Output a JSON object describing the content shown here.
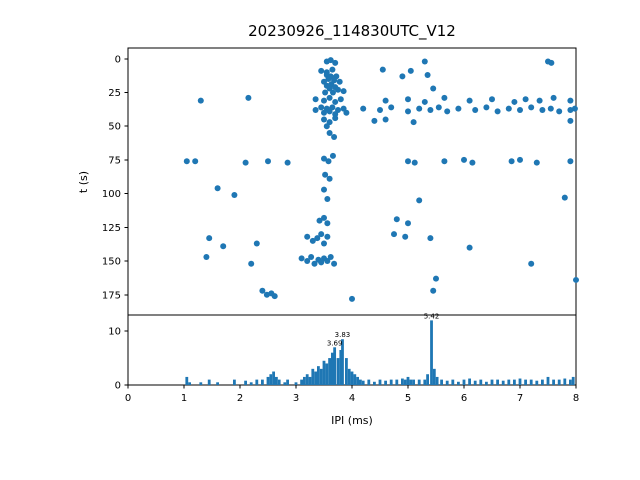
{
  "figure": {
    "title": "20230926_114830UTC_V12"
  },
  "chart_data": [
    {
      "type": "scatter",
      "title": "20230926_114830UTC_V12",
      "xlabel": "IPI (ms)",
      "ylabel": "t (s)",
      "xlim": [
        0,
        8
      ],
      "ylim": [
        190,
        -8
      ],
      "y_inverted": true,
      "xticks": [
        0,
        1,
        2,
        3,
        4,
        5,
        6,
        7,
        8
      ],
      "yticks": [
        0,
        25,
        50,
        75,
        100,
        125,
        150,
        175
      ],
      "marker_color": "#1f77b4",
      "points": [
        [
          3.55,
          2
        ],
        [
          3.62,
          1
        ],
        [
          3.7,
          3
        ],
        [
          5.3,
          2
        ],
        [
          7.5,
          2
        ],
        [
          7.56,
          3
        ],
        [
          3.45,
          9
        ],
        [
          3.55,
          10
        ],
        [
          3.65,
          8
        ],
        [
          4.55,
          8
        ],
        [
          5.05,
          9
        ],
        [
          3.55,
          12
        ],
        [
          3.62,
          13
        ],
        [
          3.72,
          13
        ],
        [
          3.58,
          15
        ],
        [
          3.68,
          16
        ],
        [
          3.5,
          17
        ],
        [
          3.78,
          17
        ],
        [
          3.63,
          19
        ],
        [
          3.55,
          20
        ],
        [
          3.7,
          21
        ],
        [
          3.6,
          22
        ],
        [
          3.75,
          23
        ],
        [
          3.85,
          24
        ],
        [
          3.52,
          25
        ],
        [
          3.66,
          25
        ],
        [
          4.9,
          13
        ],
        [
          5.35,
          12
        ],
        [
          5.45,
          22
        ],
        [
          1.3,
          31
        ],
        [
          2.15,
          29
        ],
        [
          3.35,
          30
        ],
        [
          3.5,
          31
        ],
        [
          3.6,
          29
        ],
        [
          3.7,
          32
        ],
        [
          3.8,
          30
        ],
        [
          4.6,
          31
        ],
        [
          5.0,
          30
        ],
        [
          5.3,
          32
        ],
        [
          5.65,
          29
        ],
        [
          6.1,
          31
        ],
        [
          6.5,
          30
        ],
        [
          6.9,
          32
        ],
        [
          7.1,
          30
        ],
        [
          7.35,
          31
        ],
        [
          7.6,
          29
        ],
        [
          7.9,
          31
        ],
        [
          3.35,
          38
        ],
        [
          3.45,
          36
        ],
        [
          3.5,
          40
        ],
        [
          3.55,
          37
        ],
        [
          3.6,
          39
        ],
        [
          3.65,
          36
        ],
        [
          3.7,
          41
        ],
        [
          3.75,
          38
        ],
        [
          3.85,
          37
        ],
        [
          3.9,
          40
        ],
        [
          4.2,
          37
        ],
        [
          4.5,
          38
        ],
        [
          4.7,
          36
        ],
        [
          5.0,
          39
        ],
        [
          5.2,
          37
        ],
        [
          5.4,
          38
        ],
        [
          5.55,
          36
        ],
        [
          5.7,
          39
        ],
        [
          5.9,
          37
        ],
        [
          6.2,
          38
        ],
        [
          6.4,
          36
        ],
        [
          6.6,
          39
        ],
        [
          6.8,
          37
        ],
        [
          7.0,
          38
        ],
        [
          7.2,
          36
        ],
        [
          7.4,
          38
        ],
        [
          7.55,
          37
        ],
        [
          7.7,
          39
        ],
        [
          7.9,
          38
        ],
        [
          7.98,
          37
        ],
        [
          3.5,
          45
        ],
        [
          3.6,
          47
        ],
        [
          3.7,
          44
        ],
        [
          4.4,
          46
        ],
        [
          4.6,
          45
        ],
        [
          5.1,
          47
        ],
        [
          7.9,
          46
        ],
        [
          3.55,
          50
        ],
        [
          3.6,
          55
        ],
        [
          3.68,
          58
        ],
        [
          1.05,
          76
        ],
        [
          1.2,
          76
        ],
        [
          2.1,
          77
        ],
        [
          2.5,
          76
        ],
        [
          2.85,
          77
        ],
        [
          3.5,
          74
        ],
        [
          3.58,
          76
        ],
        [
          3.66,
          72
        ],
        [
          5.0,
          76
        ],
        [
          5.12,
          77
        ],
        [
          5.65,
          76
        ],
        [
          6.0,
          75
        ],
        [
          6.15,
          77
        ],
        [
          6.85,
          76
        ],
        [
          7.0,
          75
        ],
        [
          7.3,
          77
        ],
        [
          7.9,
          76
        ],
        [
          3.52,
          86
        ],
        [
          3.6,
          89
        ],
        [
          1.6,
          96
        ],
        [
          1.9,
          101
        ],
        [
          3.5,
          97
        ],
        [
          3.56,
          104
        ],
        [
          5.2,
          105
        ],
        [
          7.8,
          103
        ],
        [
          3.42,
          120
        ],
        [
          3.5,
          118
        ],
        [
          3.56,
          122
        ],
        [
          4.8,
          119
        ],
        [
          5.0,
          122
        ],
        [
          1.45,
          133
        ],
        [
          1.7,
          139
        ],
        [
          2.3,
          137
        ],
        [
          3.2,
          132
        ],
        [
          3.3,
          135
        ],
        [
          3.38,
          133
        ],
        [
          3.45,
          130
        ],
        [
          3.5,
          137
        ],
        [
          3.56,
          132
        ],
        [
          4.75,
          130
        ],
        [
          4.95,
          132
        ],
        [
          5.4,
          133
        ],
        [
          6.1,
          140
        ],
        [
          1.4,
          147
        ],
        [
          2.2,
          152
        ],
        [
          3.1,
          148
        ],
        [
          3.2,
          150
        ],
        [
          3.27,
          147
        ],
        [
          3.33,
          152
        ],
        [
          3.4,
          149
        ],
        [
          3.45,
          151
        ],
        [
          3.5,
          148
        ],
        [
          3.56,
          150
        ],
        [
          3.62,
          147
        ],
        [
          3.68,
          152
        ],
        [
          7.2,
          152
        ],
        [
          5.5,
          163
        ],
        [
          8.0,
          164
        ],
        [
          2.4,
          172
        ],
        [
          2.48,
          175
        ],
        [
          2.56,
          174
        ],
        [
          2.62,
          176
        ],
        [
          4.0,
          178
        ],
        [
          5.45,
          172
        ]
      ]
    },
    {
      "type": "bar",
      "xlabel": "IPI (ms)",
      "xlim": [
        0,
        8
      ],
      "ylim": [
        0,
        13
      ],
      "yticks": [
        0,
        10
      ],
      "bin_width": 0.05,
      "bar_color": "#1f77b4",
      "bins": [
        [
          1.05,
          1.5
        ],
        [
          1.1,
          0.5
        ],
        [
          1.3,
          0.5
        ],
        [
          1.45,
          1
        ],
        [
          1.6,
          0.5
        ],
        [
          1.9,
          1
        ],
        [
          2.1,
          0.8
        ],
        [
          2.2,
          0.5
        ],
        [
          2.3,
          1
        ],
        [
          2.4,
          1
        ],
        [
          2.5,
          1.5
        ],
        [
          2.55,
          2
        ],
        [
          2.6,
          2.5
        ],
        [
          2.65,
          1.5
        ],
        [
          2.7,
          1
        ],
        [
          2.8,
          0.5
        ],
        [
          2.85,
          1
        ],
        [
          3.0,
          0.5
        ],
        [
          3.1,
          1
        ],
        [
          3.15,
          1.5
        ],
        [
          3.2,
          2
        ],
        [
          3.25,
          1.5
        ],
        [
          3.3,
          3
        ],
        [
          3.35,
          2.5
        ],
        [
          3.4,
          3.5
        ],
        [
          3.45,
          3
        ],
        [
          3.5,
          4.5
        ],
        [
          3.55,
          4
        ],
        [
          3.6,
          5
        ],
        [
          3.65,
          6
        ],
        [
          3.69,
          7
        ],
        [
          3.75,
          5
        ],
        [
          3.8,
          6.5
        ],
        [
          3.83,
          8.5
        ],
        [
          3.9,
          5
        ],
        [
          3.95,
          3
        ],
        [
          4.0,
          2.5
        ],
        [
          4.05,
          2
        ],
        [
          4.1,
          1.5
        ],
        [
          4.15,
          1
        ],
        [
          4.2,
          0.8
        ],
        [
          4.3,
          1
        ],
        [
          4.4,
          0.6
        ],
        [
          4.5,
          1
        ],
        [
          4.6,
          0.8
        ],
        [
          4.7,
          1
        ],
        [
          4.8,
          1
        ],
        [
          4.9,
          1.2
        ],
        [
          4.95,
          1
        ],
        [
          5.0,
          1.5
        ],
        [
          5.05,
          1
        ],
        [
          5.1,
          1
        ],
        [
          5.2,
          1
        ],
        [
          5.3,
          1
        ],
        [
          5.35,
          2
        ],
        [
          5.42,
          12
        ],
        [
          5.47,
          3
        ],
        [
          5.52,
          1.5
        ],
        [
          5.6,
          1
        ],
        [
          5.7,
          0.8
        ],
        [
          5.8,
          1
        ],
        [
          5.9,
          0.6
        ],
        [
          6.0,
          1
        ],
        [
          6.1,
          1.2
        ],
        [
          6.2,
          0.8
        ],
        [
          6.3,
          1
        ],
        [
          6.4,
          0.6
        ],
        [
          6.5,
          1
        ],
        [
          6.6,
          1
        ],
        [
          6.7,
          0.8
        ],
        [
          6.8,
          1
        ],
        [
          6.9,
          1
        ],
        [
          7.0,
          1.2
        ],
        [
          7.1,
          1
        ],
        [
          7.2,
          1
        ],
        [
          7.3,
          0.8
        ],
        [
          7.4,
          1
        ],
        [
          7.5,
          1.5
        ],
        [
          7.6,
          1
        ],
        [
          7.7,
          1
        ],
        [
          7.8,
          1.2
        ],
        [
          7.9,
          1
        ],
        [
          7.95,
          1.5
        ]
      ],
      "annotations": [
        {
          "text": "3.69",
          "x": 3.69,
          "y": 7
        },
        {
          "text": "3.83",
          "x": 3.83,
          "y": 8.5
        },
        {
          "text": "5.42",
          "x": 5.42,
          "y": 12
        }
      ]
    }
  ]
}
